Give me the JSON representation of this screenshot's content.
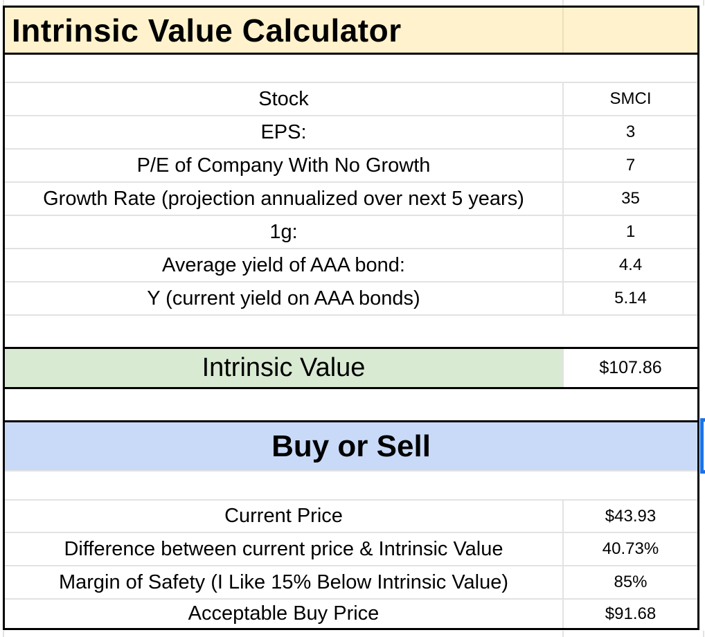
{
  "header": {
    "title": "Intrinsic Value Calculator"
  },
  "calculator": {
    "rows": [
      {
        "label": "Stock",
        "value": "SMCI"
      },
      {
        "label": "EPS:",
        "value": "3"
      },
      {
        "label": "P/E of Company With No Growth",
        "value": "7"
      },
      {
        "label": "Growth Rate (projection annualized over next 5 years)",
        "value": "35"
      },
      {
        "label": "1g:",
        "value": "1"
      },
      {
        "label": "Average yield of AAA bond:",
        "value": "4.4"
      },
      {
        "label": "Y (current yield on AAA bonds)",
        "value": "5.14"
      }
    ],
    "result": {
      "label": "Intrinsic Value",
      "value": "$107.86"
    }
  },
  "buy_or_sell": {
    "title": "Buy or Sell",
    "rows": [
      {
        "label": "Current Price",
        "value": "$43.93"
      },
      {
        "label": "Difference between current price & Intrinsic Value",
        "value": "40.73%"
      },
      {
        "label": "Margin of Safety (I Like 15% Below Intrinsic Value)",
        "value": "85%"
      },
      {
        "label": "Acceptable Buy Price",
        "value": "$91.68"
      }
    ]
  },
  "colors": {
    "header_bg": "#fff2cc",
    "result_bg": "#d9ead3",
    "section_bg": "#c9daf8",
    "gridline": "#e2e2e2",
    "border": "#000000",
    "selection": "#1a73e8"
  }
}
